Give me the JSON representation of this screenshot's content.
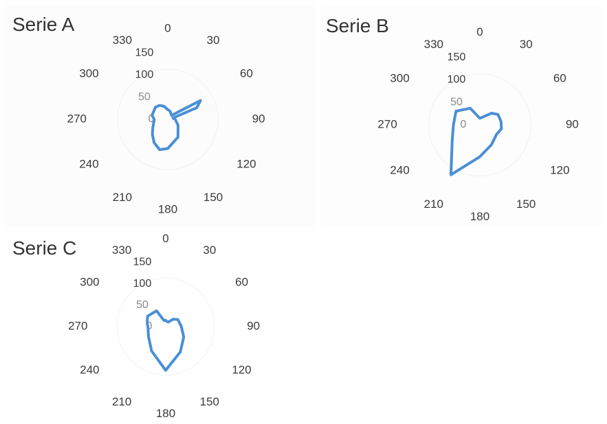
{
  "chart_data": [
    {
      "type": "radar",
      "title": "Serie A",
      "angle_labels": [
        "0",
        "30",
        "60",
        "90",
        "120",
        "150",
        "180",
        "210",
        "240",
        "270",
        "300",
        "330"
      ],
      "radial_ticks": [
        "0",
        "50",
        "100",
        "150"
      ],
      "rlim": [
        0,
        150
      ],
      "legend": "none",
      "color": "#4a8fd6",
      "series": [
        {
          "angles": [
            0,
            15,
            30,
            45,
            55,
            60,
            68,
            75,
            90,
            120,
            150,
            180,
            195,
            210,
            225,
            240,
            255,
            270,
            285,
            300,
            315,
            330,
            345
          ],
          "values": [
            18,
            16,
            12,
            10,
            25,
            70,
            58,
            10,
            14,
            22,
            38,
            54,
            58,
            50,
            40,
            32,
            27,
            25,
            30,
            30,
            32,
            30,
            25
          ]
        }
      ]
    },
    {
      "type": "radar",
      "title": "Serie B",
      "angle_labels": [
        "0",
        "30",
        "60",
        "90",
        "120",
        "150",
        "180",
        "210",
        "240",
        "270",
        "300",
        "330"
      ],
      "radial_ticks": [
        "0",
        "50",
        "100",
        "150"
      ],
      "rlim": [
        0,
        150
      ],
      "legend": "none",
      "color": "#4a8fd6",
      "series": [
        {
          "angles": [
            0,
            20,
            45,
            60,
            80,
            100,
            120,
            150,
            180,
            210,
            240,
            270,
            300,
            330,
            350
          ],
          "values": [
            12,
            15,
            30,
            38,
            39,
            40,
            35,
            42,
            58,
            105,
            58,
            48,
            50,
            35,
            15
          ]
        }
      ]
    },
    {
      "type": "radar",
      "title": "Serie C",
      "angle_labels": [
        "0",
        "30",
        "60",
        "90",
        "120",
        "150",
        "180",
        "210",
        "240",
        "270",
        "300",
        "330"
      ],
      "radial_ticks": [
        "0",
        "50",
        "100",
        "150"
      ],
      "rlim": [
        0,
        150
      ],
      "legend": "none",
      "color": "#4a8fd6",
      "series": [
        {
          "angles": [
            0,
            15,
            30,
            45,
            60,
            90,
            120,
            150,
            180,
            210,
            240,
            270,
            280,
            300,
            330,
            345
          ],
          "values": [
            12,
            10,
            10,
            20,
            27,
            30,
            40,
            56,
            84,
            54,
            38,
            34,
            36,
            40,
            35,
            12
          ]
        }
      ]
    }
  ]
}
